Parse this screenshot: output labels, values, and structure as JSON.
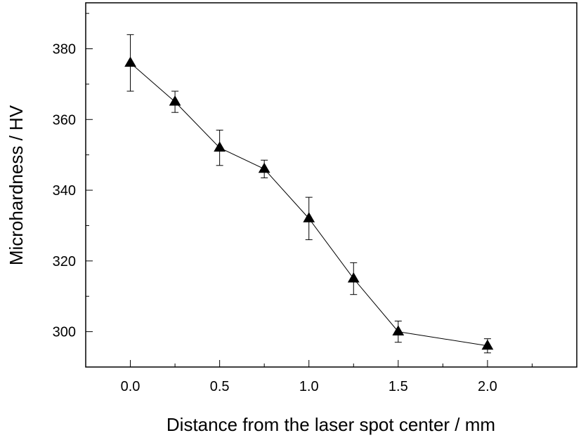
{
  "chart_data": {
    "type": "line",
    "title": "",
    "xlabel": "Distance from the laser spot center / mm",
    "ylabel": "Microhardness / HV",
    "xlim": [
      -0.25,
      2.5
    ],
    "ylim": [
      290,
      393
    ],
    "xticks": [
      "0.0",
      "0.5",
      "1.0",
      "1.5",
      "2.0"
    ],
    "xtick_values": [
      0.0,
      0.5,
      1.0,
      1.5,
      2.0
    ],
    "xminor_values": [
      0.25,
      0.75,
      1.25,
      1.75,
      2.25
    ],
    "yticks": [
      "300",
      "320",
      "340",
      "360",
      "380"
    ],
    "ytick_values": [
      300,
      320,
      340,
      360,
      380
    ],
    "yminor_values": [
      290,
      310,
      330,
      350,
      370,
      390
    ],
    "grid": false,
    "marker": "filled-triangle",
    "color": "#000000",
    "series": [
      {
        "x": [
          0.0,
          0.25,
          0.5,
          0.75,
          1.0,
          1.25,
          1.5,
          2.0
        ],
        "y": [
          376,
          365,
          352,
          346,
          332,
          315,
          300,
          296
        ],
        "error": [
          8,
          3,
          5,
          2.5,
          6,
          4.5,
          3,
          2
        ]
      }
    ]
  }
}
